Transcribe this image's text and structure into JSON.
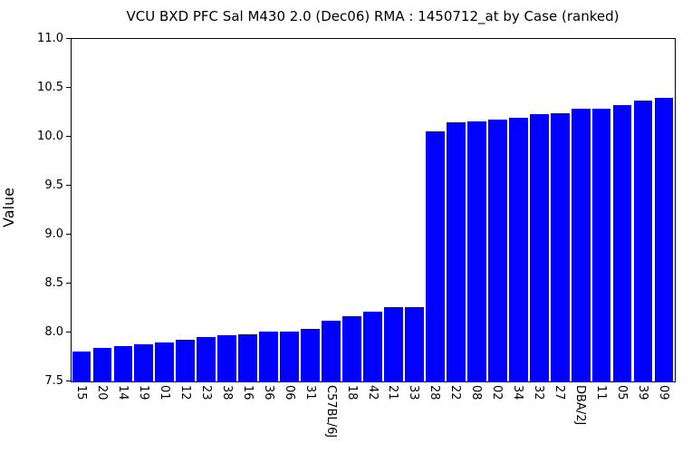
{
  "title": "VCU BXD PFC Sal M430 2.0 (Dec06) RMA : 1450712_at by Case (ranked)",
  "colors": {
    "bar": "#0000ff",
    "axis": "#000000",
    "background": "#ffffff",
    "text": "#000000"
  },
  "chart_data": {
    "type": "bar",
    "title": "VCU BXD PFC Sal M430 2.0 (Dec06) RMA : 1450712_at by Case (ranked)",
    "xlabel": "",
    "ylabel": "Value",
    "ylim": [
      7.5,
      11.0
    ],
    "ytick_step": 0.5,
    "ytick_labels": [
      "11.0",
      "10.5",
      "10.0",
      "9.5",
      "9.0",
      "8.5",
      "8.0",
      "7.5"
    ],
    "grid": false,
    "legend": null,
    "bar_color": "#0000ff",
    "categories": [
      "15",
      "20",
      "14",
      "19",
      "01",
      "12",
      "23",
      "38",
      "16",
      "36",
      "06",
      "31",
      "C57BL/6J",
      "18",
      "42",
      "21",
      "33",
      "28",
      "22",
      "08",
      "02",
      "34",
      "32",
      "27",
      "DBA/2J",
      "11",
      "05",
      "39",
      "09"
    ],
    "values": [
      7.81,
      7.84,
      7.86,
      7.88,
      7.9,
      7.93,
      7.95,
      7.97,
      7.98,
      8.01,
      8.01,
      8.04,
      8.12,
      8.17,
      8.21,
      8.26,
      8.26,
      10.06,
      10.15,
      10.16,
      10.18,
      10.19,
      10.23,
      10.24,
      10.29,
      10.29,
      10.32,
      10.37,
      10.4
    ]
  }
}
